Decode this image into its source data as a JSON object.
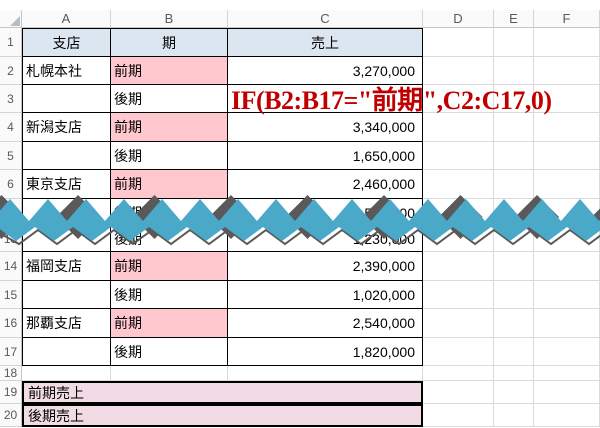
{
  "app": {
    "type": "spreadsheet-screenshot"
  },
  "colors": {
    "header_fill": "#DCE6F1",
    "period_highlight_fill": "#FFC7CE",
    "summary_fill": "#F1DCE5",
    "annotation_red": "#C00000",
    "torn_band_teal": "#4AA8C8",
    "torn_shadow_gray": "#595959",
    "gridline_gray": "#DADADA"
  },
  "annotation": {
    "formula": "IF(B2:B17=\"前期\",C2:C17,0)"
  },
  "sheet": {
    "col_headers": [
      "A",
      "B",
      "C",
      "D",
      "E",
      "F"
    ],
    "rows": [
      {
        "num": "1",
        "kind": "head",
        "a": "支店",
        "b": "期",
        "c": "売上"
      },
      {
        "num": "2",
        "kind": "data",
        "a": "札幌本社",
        "b": "前期",
        "hl": true,
        "c": "3,270,000"
      },
      {
        "num": "3",
        "kind": "data",
        "a": "",
        "b": "後期",
        "hl": false,
        "c": ""
      },
      {
        "num": "4",
        "kind": "data",
        "a": "新潟支店",
        "b": "前期",
        "hl": true,
        "c": "3,340,000"
      },
      {
        "num": "5",
        "kind": "data",
        "a": "",
        "b": "後期",
        "hl": false,
        "c": "1,650,000"
      },
      {
        "num": "6",
        "kind": "data",
        "a": "東京支店",
        "b": "前期",
        "hl": true,
        "c": "2,460,000"
      },
      {
        "num": "7",
        "kind": "data",
        "a": "",
        "b": "後期",
        "hl": false,
        "c": "1,520,000"
      },
      {
        "num": "13",
        "kind": "data",
        "a": "",
        "b": "後期",
        "hl": false,
        "c": "1,230,000"
      },
      {
        "num": "14",
        "kind": "data",
        "a": "福岡支店",
        "b": "前期",
        "hl": true,
        "c": "2,390,000"
      },
      {
        "num": "15",
        "kind": "data",
        "a": "",
        "b": "後期",
        "hl": false,
        "c": "1,020,000"
      },
      {
        "num": "16",
        "kind": "data",
        "a": "那覇支店",
        "b": "前期",
        "hl": true,
        "c": "2,540,000"
      },
      {
        "num": "17",
        "kind": "data",
        "a": "",
        "b": "後期",
        "hl": false,
        "c": "1,820,000"
      },
      {
        "num": "18",
        "kind": "blank"
      },
      {
        "num": "19",
        "kind": "summary",
        "label": "前期売上"
      },
      {
        "num": "20",
        "kind": "summary",
        "label": "後期売上"
      }
    ]
  }
}
